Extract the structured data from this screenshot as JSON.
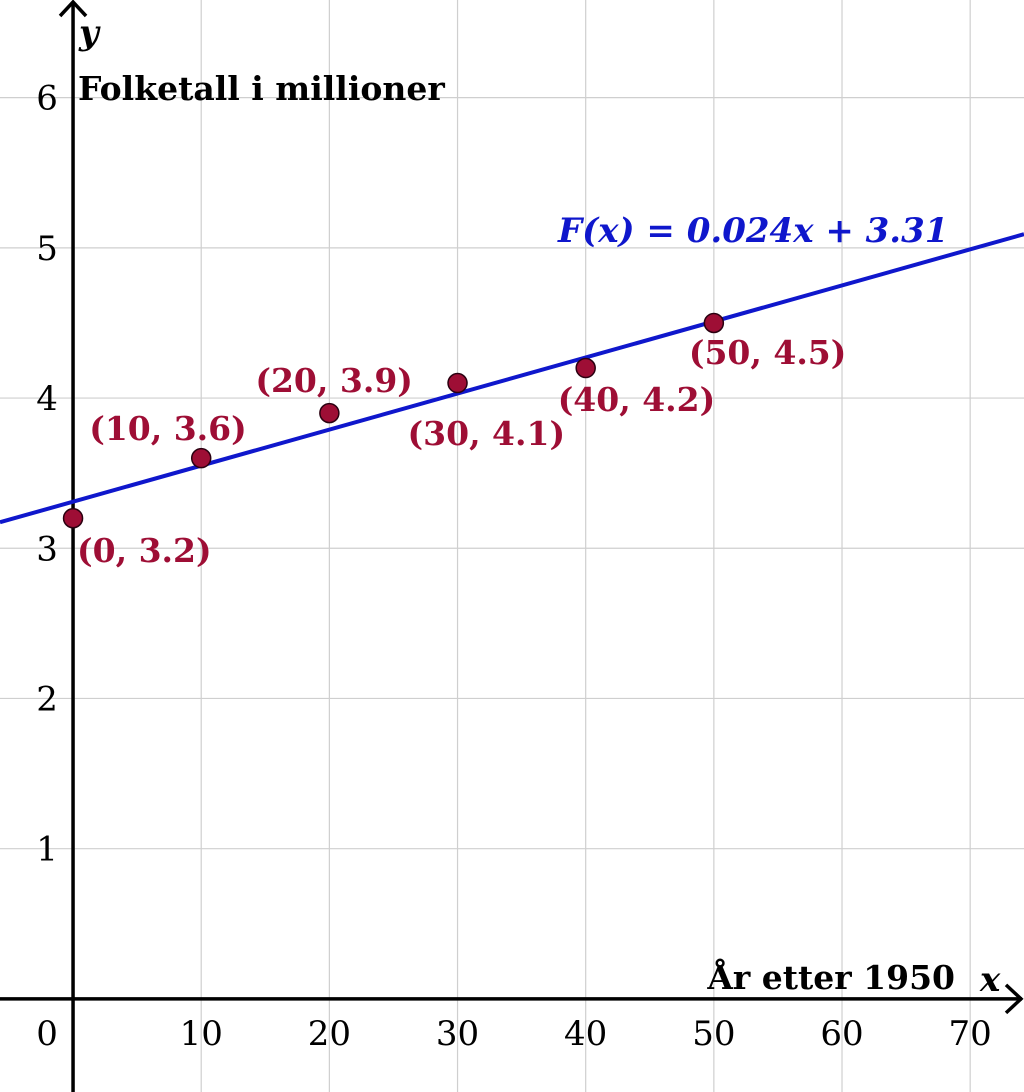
{
  "chart_data": {
    "type": "scatter",
    "xlabel": "År etter 1950",
    "ylabel": "Folketall i millioner",
    "x_axis_var": "x",
    "y_axis_var": "y",
    "xlim": [
      -5.7,
      74.2
    ],
    "ylim": [
      -0.62,
      6.65
    ],
    "x_ticks": [
      0,
      10,
      20,
      30,
      40,
      50,
      60,
      70
    ],
    "y_ticks": [
      1,
      2,
      3,
      4,
      5,
      6
    ],
    "x_tick_labels": [
      "0",
      "10",
      "20",
      "30",
      "40",
      "50",
      "60",
      "70"
    ],
    "y_tick_labels": [
      "1",
      "2",
      "3",
      "4",
      "5",
      "6"
    ],
    "grid": true,
    "points": [
      {
        "x": 0,
        "y": 3.2,
        "label": "(0, 3.2)"
      },
      {
        "x": 10,
        "y": 3.6,
        "label": "(10, 3.6)"
      },
      {
        "x": 20,
        "y": 3.9,
        "label": "(20, 3.9)"
      },
      {
        "x": 30,
        "y": 4.1,
        "label": "(30, 4.1)"
      },
      {
        "x": 40,
        "y": 4.2,
        "label": "(40, 4.2)"
      },
      {
        "x": 50,
        "y": 4.5,
        "label": "(50, 4.5)"
      }
    ],
    "regression": {
      "slope": 0.024,
      "intercept": 3.31,
      "label": "F(x) = 0.024x + 3.31"
    },
    "colors": {
      "points": "#9e0e35",
      "line": "#0f17cc",
      "grid": "#cfcfcf",
      "axes": "#000000"
    }
  }
}
